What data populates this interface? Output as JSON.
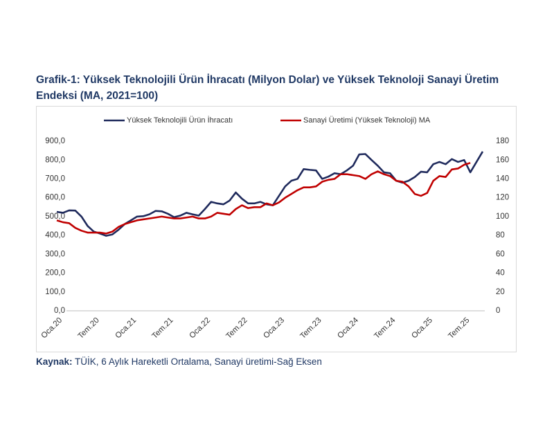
{
  "chart_data": {
    "type": "line",
    "title": "Grafik-1: Yüksek Teknolojili Ürün İhracatı (Milyon Dolar) ve Yüksek Teknoloji Sanayi Üretim Endeksi (MA, 2021=100)",
    "source_label": "Kaynak:",
    "source_text": "TÜİK, 6 Aylık Hareketli Ortalama, Sanayi üretimi-Sağ Eksen",
    "categories": [
      "Oca.20",
      null,
      null,
      null,
      null,
      null,
      "Tem.20",
      null,
      null,
      null,
      null,
      null,
      "Oca.21",
      null,
      null,
      null,
      null,
      null,
      "Tem.21",
      null,
      null,
      null,
      null,
      null,
      "Oca.22",
      null,
      null,
      null,
      null,
      null,
      "Tem.22",
      null,
      null,
      null,
      null,
      null,
      "Oca.23",
      null,
      null,
      null,
      null,
      null,
      "Tem.23",
      null,
      null,
      null,
      null,
      null,
      "Oca.24",
      null,
      null,
      null,
      null,
      null,
      "Tem.24",
      null,
      null,
      null,
      null,
      null,
      "Oca.25",
      null,
      null,
      null,
      null,
      null,
      "Tem.25",
      null,
      null,
      null
    ],
    "series": [
      {
        "name": "Yüksek Teknolojili Ürün İhracatı",
        "color": "#1f2a5c",
        "values": [
          525,
          520,
          533,
          532,
          500,
          450,
          420,
          410,
          398,
          405,
          430,
          460,
          480,
          500,
          502,
          512,
          530,
          528,
          515,
          497,
          505,
          520,
          512,
          505,
          540,
          578,
          570,
          565,
          585,
          628,
          595,
          570,
          570,
          578,
          565,
          560,
          610,
          660,
          690,
          700,
          752,
          748,
          745,
          700,
          712,
          730,
          725,
          745,
          770,
          830,
          832,
          800,
          770,
          735,
          730,
          690,
          680,
          690,
          710,
          738,
          735,
          778,
          790,
          778,
          805,
          790,
          800,
          735,
          790,
          845
        ]
      },
      {
        "name": "Sanayi Üretimi (Yüksek Teknoloji) MA",
        "color": "#c00000",
        "axis": "y2",
        "values": [
          96,
          94,
          93,
          88,
          85,
          83,
          83,
          83,
          82,
          84,
          89,
          92,
          94,
          96,
          97,
          98,
          99,
          100,
          99,
          98,
          98,
          99,
          100,
          98,
          98,
          100,
          104,
          103,
          102,
          108,
          112,
          109,
          110,
          110,
          114,
          112,
          115,
          120,
          124,
          128,
          131,
          131,
          132,
          137,
          139,
          140,
          145,
          145,
          144,
          143,
          140,
          145,
          148,
          145,
          143,
          138,
          137,
          132,
          124,
          122,
          125,
          138,
          143,
          142,
          150,
          151,
          155,
          157,
          null,
          null
        ]
      }
    ],
    "ylim": [
      0,
      900
    ],
    "yticks": [
      {
        "value": 0,
        "label": "0,0"
      },
      {
        "value": 100,
        "label": "100,0"
      },
      {
        "value": 200,
        "label": "200,0"
      },
      {
        "value": 300,
        "label": "300,0"
      },
      {
        "value": 400,
        "label": "400,0"
      },
      {
        "value": 500,
        "label": "500,0"
      },
      {
        "value": 600,
        "label": "600,0"
      },
      {
        "value": 700,
        "label": "700,0"
      },
      {
        "value": 800,
        "label": "800,0"
      },
      {
        "value": 900,
        "label": "900,0"
      }
    ],
    "y2lim": [
      0,
      180
    ],
    "y2ticks": [
      0,
      20,
      40,
      60,
      80,
      100,
      120,
      140,
      160,
      180
    ],
    "grid": false
  }
}
